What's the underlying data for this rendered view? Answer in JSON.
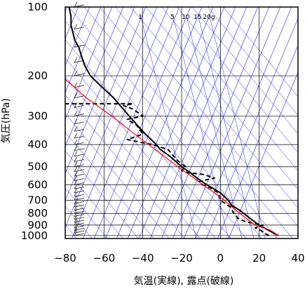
{
  "chart_data": {
    "type": "line",
    "title": "",
    "xlabel": "気温(実線), 露点(破線)",
    "ylabel": "気圧(hPa)",
    "xlim": [
      -80,
      40
    ],
    "ylim": [
      1030,
      100
    ],
    "y_scale": "log",
    "x_ticks": [
      "−80",
      "−60",
      "−40",
      "−20",
      "0",
      "20",
      "40"
    ],
    "x_tick_values": [
      -80,
      -60,
      -40,
      -20,
      0,
      20,
      40
    ],
    "y_ticks": [
      "100",
      "200",
      "300",
      "400",
      "500",
      "600",
      "700",
      "800",
      "900",
      "1000"
    ],
    "y_tick_values": [
      100,
      200,
      300,
      400,
      500,
      600,
      700,
      800,
      900,
      1000
    ],
    "mixing_ratio_labels": [
      "1",
      "5",
      "10",
      "15",
      "20g"
    ],
    "grid": true,
    "colors": {
      "temperature": "#000000",
      "dewpoint": "#000000",
      "parcel": "#ff0000",
      "isotherm_background": "#2222ee",
      "grid": "#000000"
    },
    "series": [
      {
        "key": "temperature",
        "style": "solid",
        "points": [
          [
            30,
            1000
          ],
          [
            28,
            980
          ],
          [
            25,
            950
          ],
          [
            20,
            900
          ],
          [
            16,
            850
          ],
          [
            12,
            800
          ],
          [
            10,
            775
          ],
          [
            6,
            740
          ],
          [
            4,
            700
          ],
          [
            0,
            650
          ],
          [
            -4,
            620
          ],
          [
            -7,
            600
          ],
          [
            -12,
            560
          ],
          [
            -17,
            520
          ],
          [
            -20,
            500
          ],
          [
            -26,
            450
          ],
          [
            -31,
            420
          ],
          [
            -33,
            400
          ],
          [
            -40,
            350
          ],
          [
            -47,
            300
          ],
          [
            -55,
            250
          ],
          [
            -62,
            220
          ],
          [
            -67,
            200
          ],
          [
            -70,
            180
          ],
          [
            -72,
            160
          ],
          [
            -73,
            150
          ],
          [
            -75,
            140
          ],
          [
            -76,
            130
          ],
          [
            -77,
            120
          ],
          [
            -77,
            110
          ],
          [
            -78,
            100
          ]
        ]
      },
      {
        "key": "dewpoint",
        "style": "dashed",
        "points": [
          [
            25,
            1000
          ],
          [
            22,
            970
          ],
          [
            21,
            950
          ],
          [
            18,
            925
          ],
          [
            22,
            900
          ],
          [
            13,
            870
          ],
          [
            9,
            840
          ],
          [
            7,
            800
          ],
          [
            5,
            750
          ],
          [
            0,
            700
          ],
          [
            -1,
            650
          ],
          [
            -5,
            620
          ],
          [
            -9,
            600
          ],
          [
            -11,
            580
          ],
          [
            -3,
            560
          ],
          [
            -9,
            540
          ],
          [
            -17,
            530
          ],
          [
            -20,
            520
          ],
          [
            -18,
            500
          ],
          [
            -22,
            470
          ],
          [
            -25,
            440
          ],
          [
            -27,
            420
          ],
          [
            -35,
            400
          ],
          [
            -48,
            380
          ],
          [
            -40,
            360
          ],
          [
            -43,
            330
          ],
          [
            -48,
            310
          ],
          [
            -40,
            300
          ],
          [
            -45,
            280
          ],
          [
            -50,
            270
          ],
          [
            -45,
            265
          ],
          [
            -82,
            265
          ]
        ]
      },
      {
        "key": "parcel",
        "style": "solid",
        "points": [
          [
            30,
            1000
          ],
          [
            26,
            950
          ],
          [
            18,
            900
          ],
          [
            14,
            850
          ],
          [
            10,
            800
          ],
          [
            6,
            750
          ],
          [
            2,
            700
          ],
          [
            -3,
            650
          ],
          [
            -9,
            600
          ],
          [
            -15,
            550
          ],
          [
            -22,
            500
          ],
          [
            -29,
            450
          ],
          [
            -37,
            400
          ],
          [
            -46,
            350
          ],
          [
            -56,
            300
          ],
          [
            -69,
            250
          ],
          [
            -82,
            200
          ],
          [
            -90,
            160
          ]
        ]
      }
    ],
    "wind_barbs_present": true
  }
}
